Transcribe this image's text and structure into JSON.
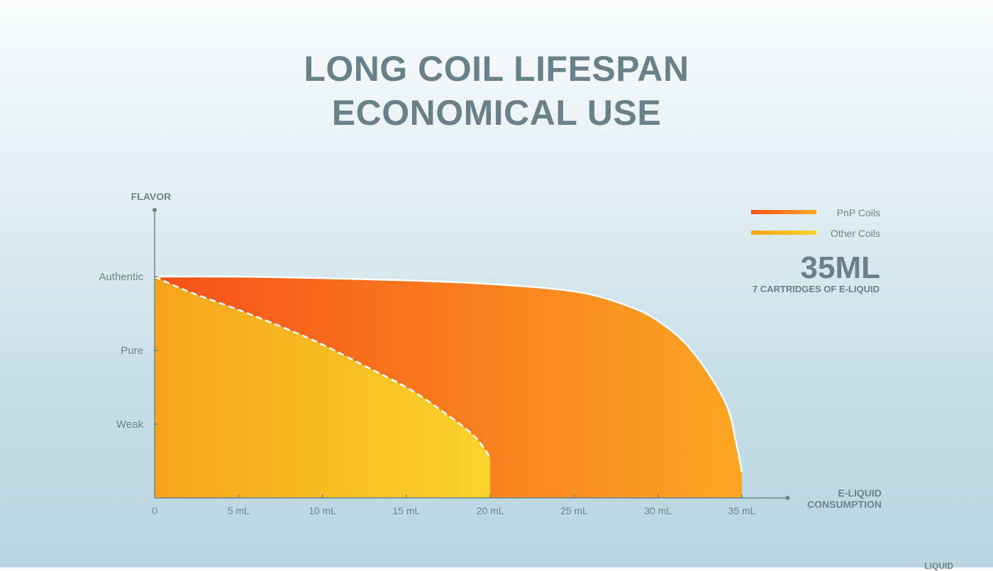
{
  "title": {
    "line1": "LONG COIL LIFESPAN",
    "line2": "ECONOMICAL USE"
  },
  "legend": {
    "pnp_label": "PnP Coils",
    "other_label": "Other Coils"
  },
  "stat": {
    "value": "35ML",
    "caption": "7 CARTRIDGES OF E-LIQUID"
  },
  "corner_text": "LIQUID",
  "colors": {
    "pnp_start": "#f7501a",
    "pnp_end": "#fba624",
    "other_start": "#f6a41b",
    "other_end": "#fbd32b",
    "axis": "#6f848c"
  },
  "chart_data": {
    "type": "area",
    "ylabel": "FLAVOR",
    "xlabel_lines": [
      "E-LIQUID",
      "CONSUMPTION"
    ],
    "x_ticks": [
      {
        "value": 0,
        "label": "0"
      },
      {
        "value": 5,
        "label": "5 mL"
      },
      {
        "value": 10,
        "label": "10 mL"
      },
      {
        "value": 15,
        "label": "15 mL"
      },
      {
        "value": 20,
        "label": "20 mL"
      },
      {
        "value": 25,
        "label": "25 mL"
      },
      {
        "value": 30,
        "label": "30 mL"
      },
      {
        "value": 35,
        "label": "35 mL"
      }
    ],
    "y_ticks": [
      {
        "value": 3,
        "label": "Authentic"
      },
      {
        "value": 2,
        "label": "Pure"
      },
      {
        "value": 1,
        "label": "Weak"
      }
    ],
    "xlim": [
      0,
      37
    ],
    "ylim": [
      0,
      4
    ],
    "series": [
      {
        "name": "PnP Coils",
        "x": [
          0,
          5,
          10,
          15,
          20,
          25,
          28,
          30,
          32,
          34,
          34.7,
          35
        ],
        "y": [
          3.0,
          3.0,
          2.98,
          2.95,
          2.9,
          2.8,
          2.62,
          2.4,
          2.0,
          1.3,
          0.7,
          0.35
        ]
      },
      {
        "name": "Other Coils",
        "x": [
          0,
          2,
          5,
          8,
          10,
          12,
          15,
          17,
          19,
          20
        ],
        "y": [
          3.0,
          2.8,
          2.55,
          2.28,
          2.08,
          1.85,
          1.5,
          1.2,
          0.85,
          0.55
        ]
      }
    ]
  }
}
